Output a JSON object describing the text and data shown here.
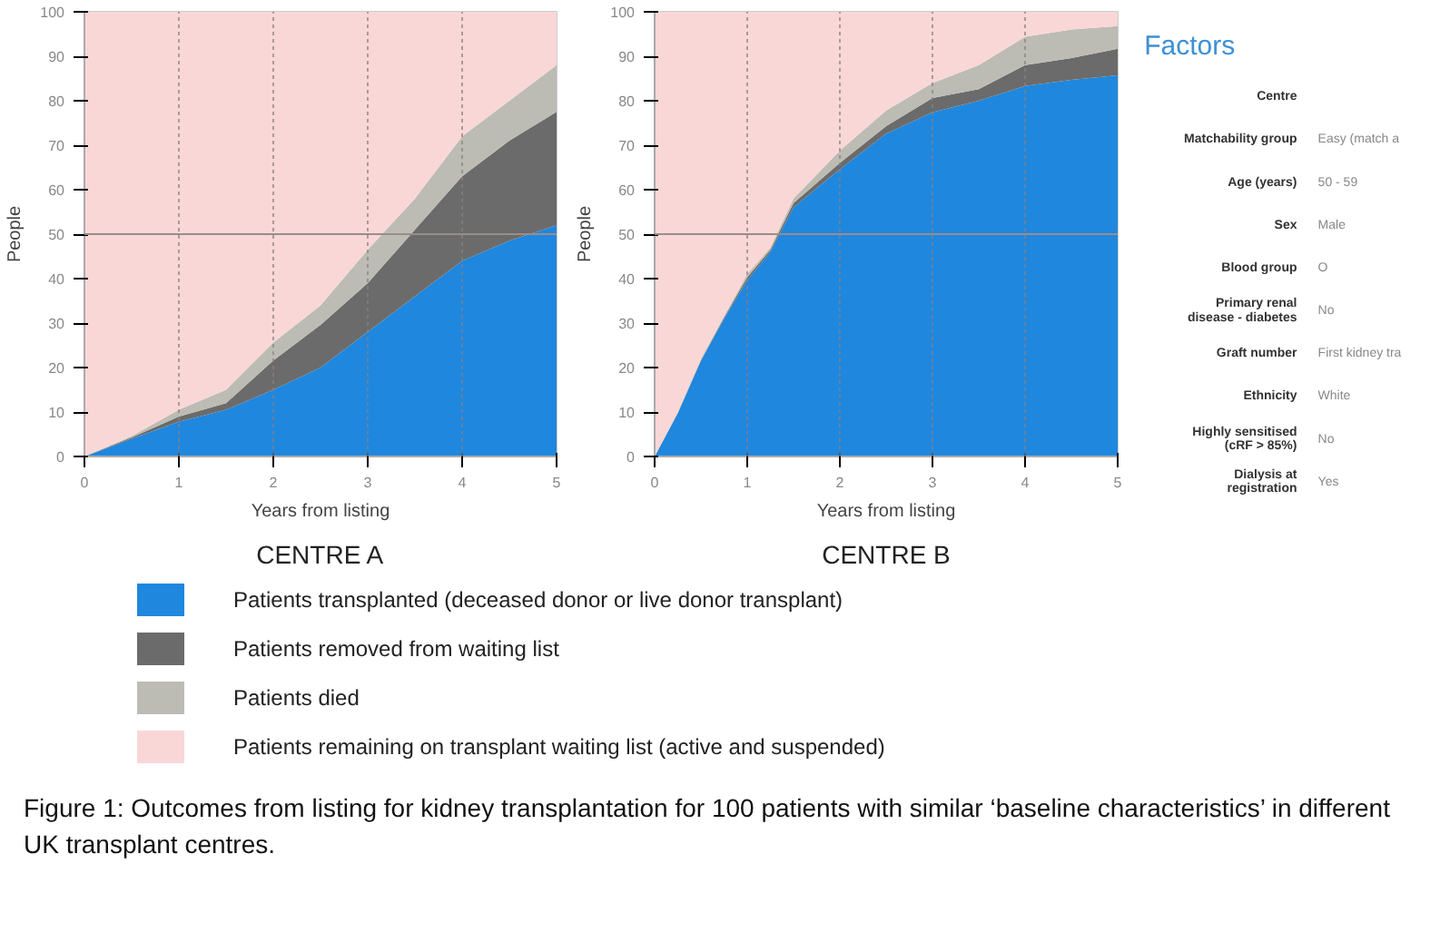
{
  "chart_data": [
    {
      "type": "area",
      "stacked": true,
      "title": "CENTRE A",
      "xlabel": "Years from listing",
      "ylabel": "People",
      "x": [
        0,
        0.5,
        1,
        1.5,
        2,
        2.5,
        3,
        3.5,
        4,
        4.5,
        5
      ],
      "xlim": [
        0,
        5
      ],
      "ylim": [
        0,
        100
      ],
      "xticks": [
        0,
        1,
        2,
        3,
        4,
        5
      ],
      "yticks": [
        0,
        10,
        20,
        30,
        40,
        50,
        60,
        70,
        80,
        90,
        100
      ],
      "grid": "x",
      "legend": "bottom",
      "ref_lines": [
        {
          "axis": "y",
          "value": 50,
          "color": "#9a8c8c"
        }
      ],
      "series": [
        {
          "name": "Patients transplanted (deceased donor or live donor transplant)",
          "color": "#1f87de",
          "values": [
            0,
            4,
            7.8,
            10.5,
            15,
            20,
            28,
            36,
            44,
            48.5,
            52
          ]
        },
        {
          "name": "Patients removed from waiting list",
          "color": "#6b6b6b",
          "values": [
            0,
            0.3,
            1.2,
            1.5,
            6.6,
            9.6,
            11,
            15,
            19,
            22.5,
            25.5
          ]
        },
        {
          "name": "Patients died",
          "color": "#bcbcb4",
          "values": [
            0,
            0.3,
            1.5,
            3,
            4,
            4.4,
            7.5,
            7,
            9,
            9,
            10.5
          ]
        },
        {
          "name": "Patients remaining on transplant waiting list (active and suspended)",
          "color": "#f9d7d7",
          "values": [
            100,
            95.4,
            89.5,
            85,
            74.4,
            66,
            53.5,
            42,
            28,
            20,
            12
          ]
        }
      ],
      "annotations": [
        "Figure 1: Outcomes from listing for kidney transplantation for 100 patients with similar ‘baseline characteristics’ in different UK transplant centres."
      ]
    },
    {
      "type": "area",
      "stacked": true,
      "title": "CENTRE B",
      "xlabel": "Years from listing",
      "ylabel": "People",
      "x": [
        0,
        0.25,
        0.5,
        0.75,
        1,
        1.25,
        1.5,
        2,
        2.5,
        3,
        3.5,
        4,
        4.5,
        5
      ],
      "xlim": [
        0,
        5
      ],
      "ylim": [
        0,
        100
      ],
      "xticks": [
        0,
        1,
        2,
        3,
        4,
        5
      ],
      "yticks": [
        0,
        10,
        20,
        30,
        40,
        50,
        60,
        70,
        80,
        90,
        100
      ],
      "grid": "x",
      "ref_lines": [
        {
          "axis": "y",
          "value": 50,
          "color": "#9a8c8c"
        }
      ],
      "series": [
        {
          "color": "#1f87de",
          "values": [
            0,
            9.7,
            21.5,
            31,
            39.6,
            46,
            56,
            64.6,
            72.6,
            77.4,
            80,
            83.3,
            84.7,
            85.7
          ]
        },
        {
          "color": "#6b6b6b",
          "values": [
            0,
            0.1,
            0.2,
            0.3,
            0.7,
            0.5,
            1,
            1.4,
            1.7,
            3.2,
            2.6,
            4.7,
            4.9,
            6
          ]
        },
        {
          "color": "#bcbcb4",
          "values": [
            0,
            0.2,
            0.3,
            0.3,
            0.7,
            0.5,
            1,
            2.8,
            3.5,
            3.4,
            5.4,
            6.4,
            6.4,
            5.1
          ]
        },
        {
          "color": "#f9d7d7",
          "values": [
            100,
            90,
            78,
            68.4,
            59,
            53,
            42,
            31.2,
            22.2,
            16,
            12,
            5.6,
            4,
            3.2
          ]
        }
      ]
    },
    {
      "type": "other",
      "title": "Factors",
      "categories": [
        "Centre",
        "Matchability group",
        "Age (years)",
        "Sex",
        "Blood group",
        "Primary renal disease - diabetes",
        "Graft number",
        "Ethnicity",
        "Highly sensitised (cRF > 85%)",
        "Dialysis at registration"
      ],
      "value_labels": [
        null,
        "Easy (match a",
        "50 - 59",
        "Male",
        "O",
        "No",
        "First kidney tra",
        "White",
        "No",
        "Yes"
      ]
    }
  ]
}
